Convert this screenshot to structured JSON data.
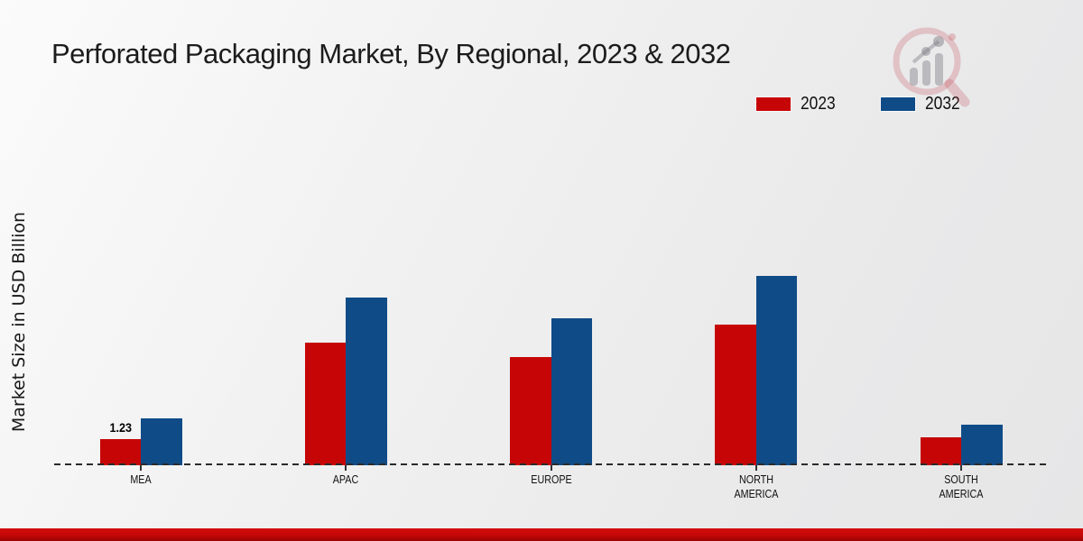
{
  "page": {
    "title": "Perforated Packaging Market, By Regional, 2023 & 2032"
  },
  "icons": {
    "watermark": "magnifier-bar-chart-logo"
  },
  "footer": {
    "style": "red-accent-band"
  },
  "chart_data": {
    "type": "bar",
    "title": "Perforated Packaging Market, By Regional, 2023 & 2032",
    "xlabel": "",
    "ylabel": "Market Size in USD Billion",
    "categories": [
      "MEA",
      "APAC",
      "EUROPE",
      "NORTH\nAMERICA",
      "SOUTH\nAMERICA"
    ],
    "series": [
      {
        "name": "2023",
        "color": "#c60606",
        "values": [
          1.23,
          5.75,
          5.1,
          6.6,
          1.3
        ],
        "value_labels": [
          "1.23",
          "",
          "",
          "",
          ""
        ]
      },
      {
        "name": "2032",
        "color": "#0f4c87",
        "values": [
          2.2,
          7.9,
          6.9,
          8.9,
          1.9
        ],
        "value_labels": [
          "",
          "",
          "",
          "",
          ""
        ]
      }
    ],
    "ylim": [
      0,
      10
    ],
    "grid": false,
    "axis_line": "dashed-baseline",
    "legend_position": "top-right"
  }
}
